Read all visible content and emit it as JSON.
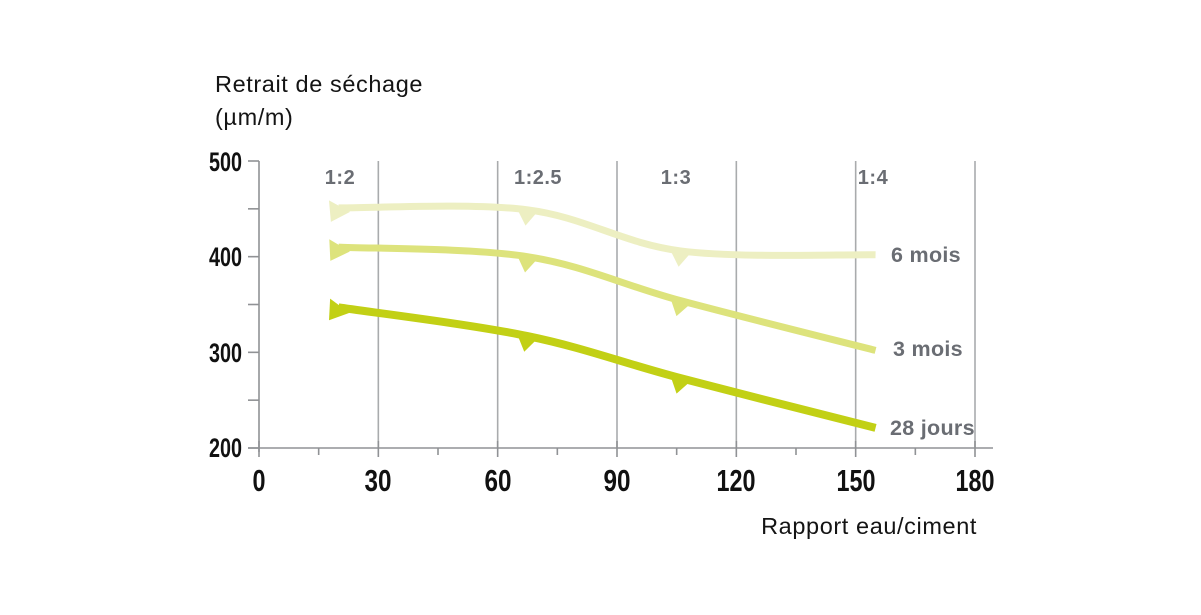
{
  "chart_data": {
    "type": "line",
    "title": "Retrait de séchage",
    "title_unit": "(µm/m)",
    "x_axis": {
      "title": "Rapport eau/ciment",
      "range": [
        0,
        180
      ],
      "tick_step": 30,
      "minor_tick_step": 15,
      "tick_labels": [
        "0",
        "30",
        "60",
        "90",
        "120",
        "150",
        "180"
      ],
      "gridlines_at": [
        30,
        60,
        90,
        120,
        150,
        180
      ]
    },
    "y_axis": {
      "range": [
        200,
        500
      ],
      "tick_step": 100,
      "minor_tick_step": 50,
      "tick_labels": [
        "500",
        "400",
        "300",
        "200"
      ]
    },
    "mix_ratio_annotations": [
      {
        "label": "1:2",
        "x": 20.5
      },
      {
        "label": "1:2.5",
        "x": 70
      },
      {
        "label": "1:3",
        "x": 105
      },
      {
        "label": "1:4",
        "x": 154.5
      }
    ],
    "x": [
      20,
      67.5,
      106,
      155
    ],
    "series": [
      {
        "name": "6 mois",
        "color": "#edefc2",
        "stroke_width": 7,
        "values": [
          451,
          449,
          406,
          402
        ]
      },
      {
        "name": "3 mois",
        "color": "#dde37c",
        "stroke_width": 7,
        "values": [
          410,
          400,
          354,
          302
        ]
      },
      {
        "name": "28 jours",
        "color": "#c2d015",
        "stroke_width": 8,
        "values": [
          347,
          317,
          273,
          221
        ]
      }
    ],
    "grid": "vertical-only",
    "legend_position": "right-end-of-lines",
    "colors": {
      "gridline": "#a9abad",
      "axis": "#909295",
      "gray_text": "#6a6d73",
      "black_text": "#111111"
    }
  }
}
